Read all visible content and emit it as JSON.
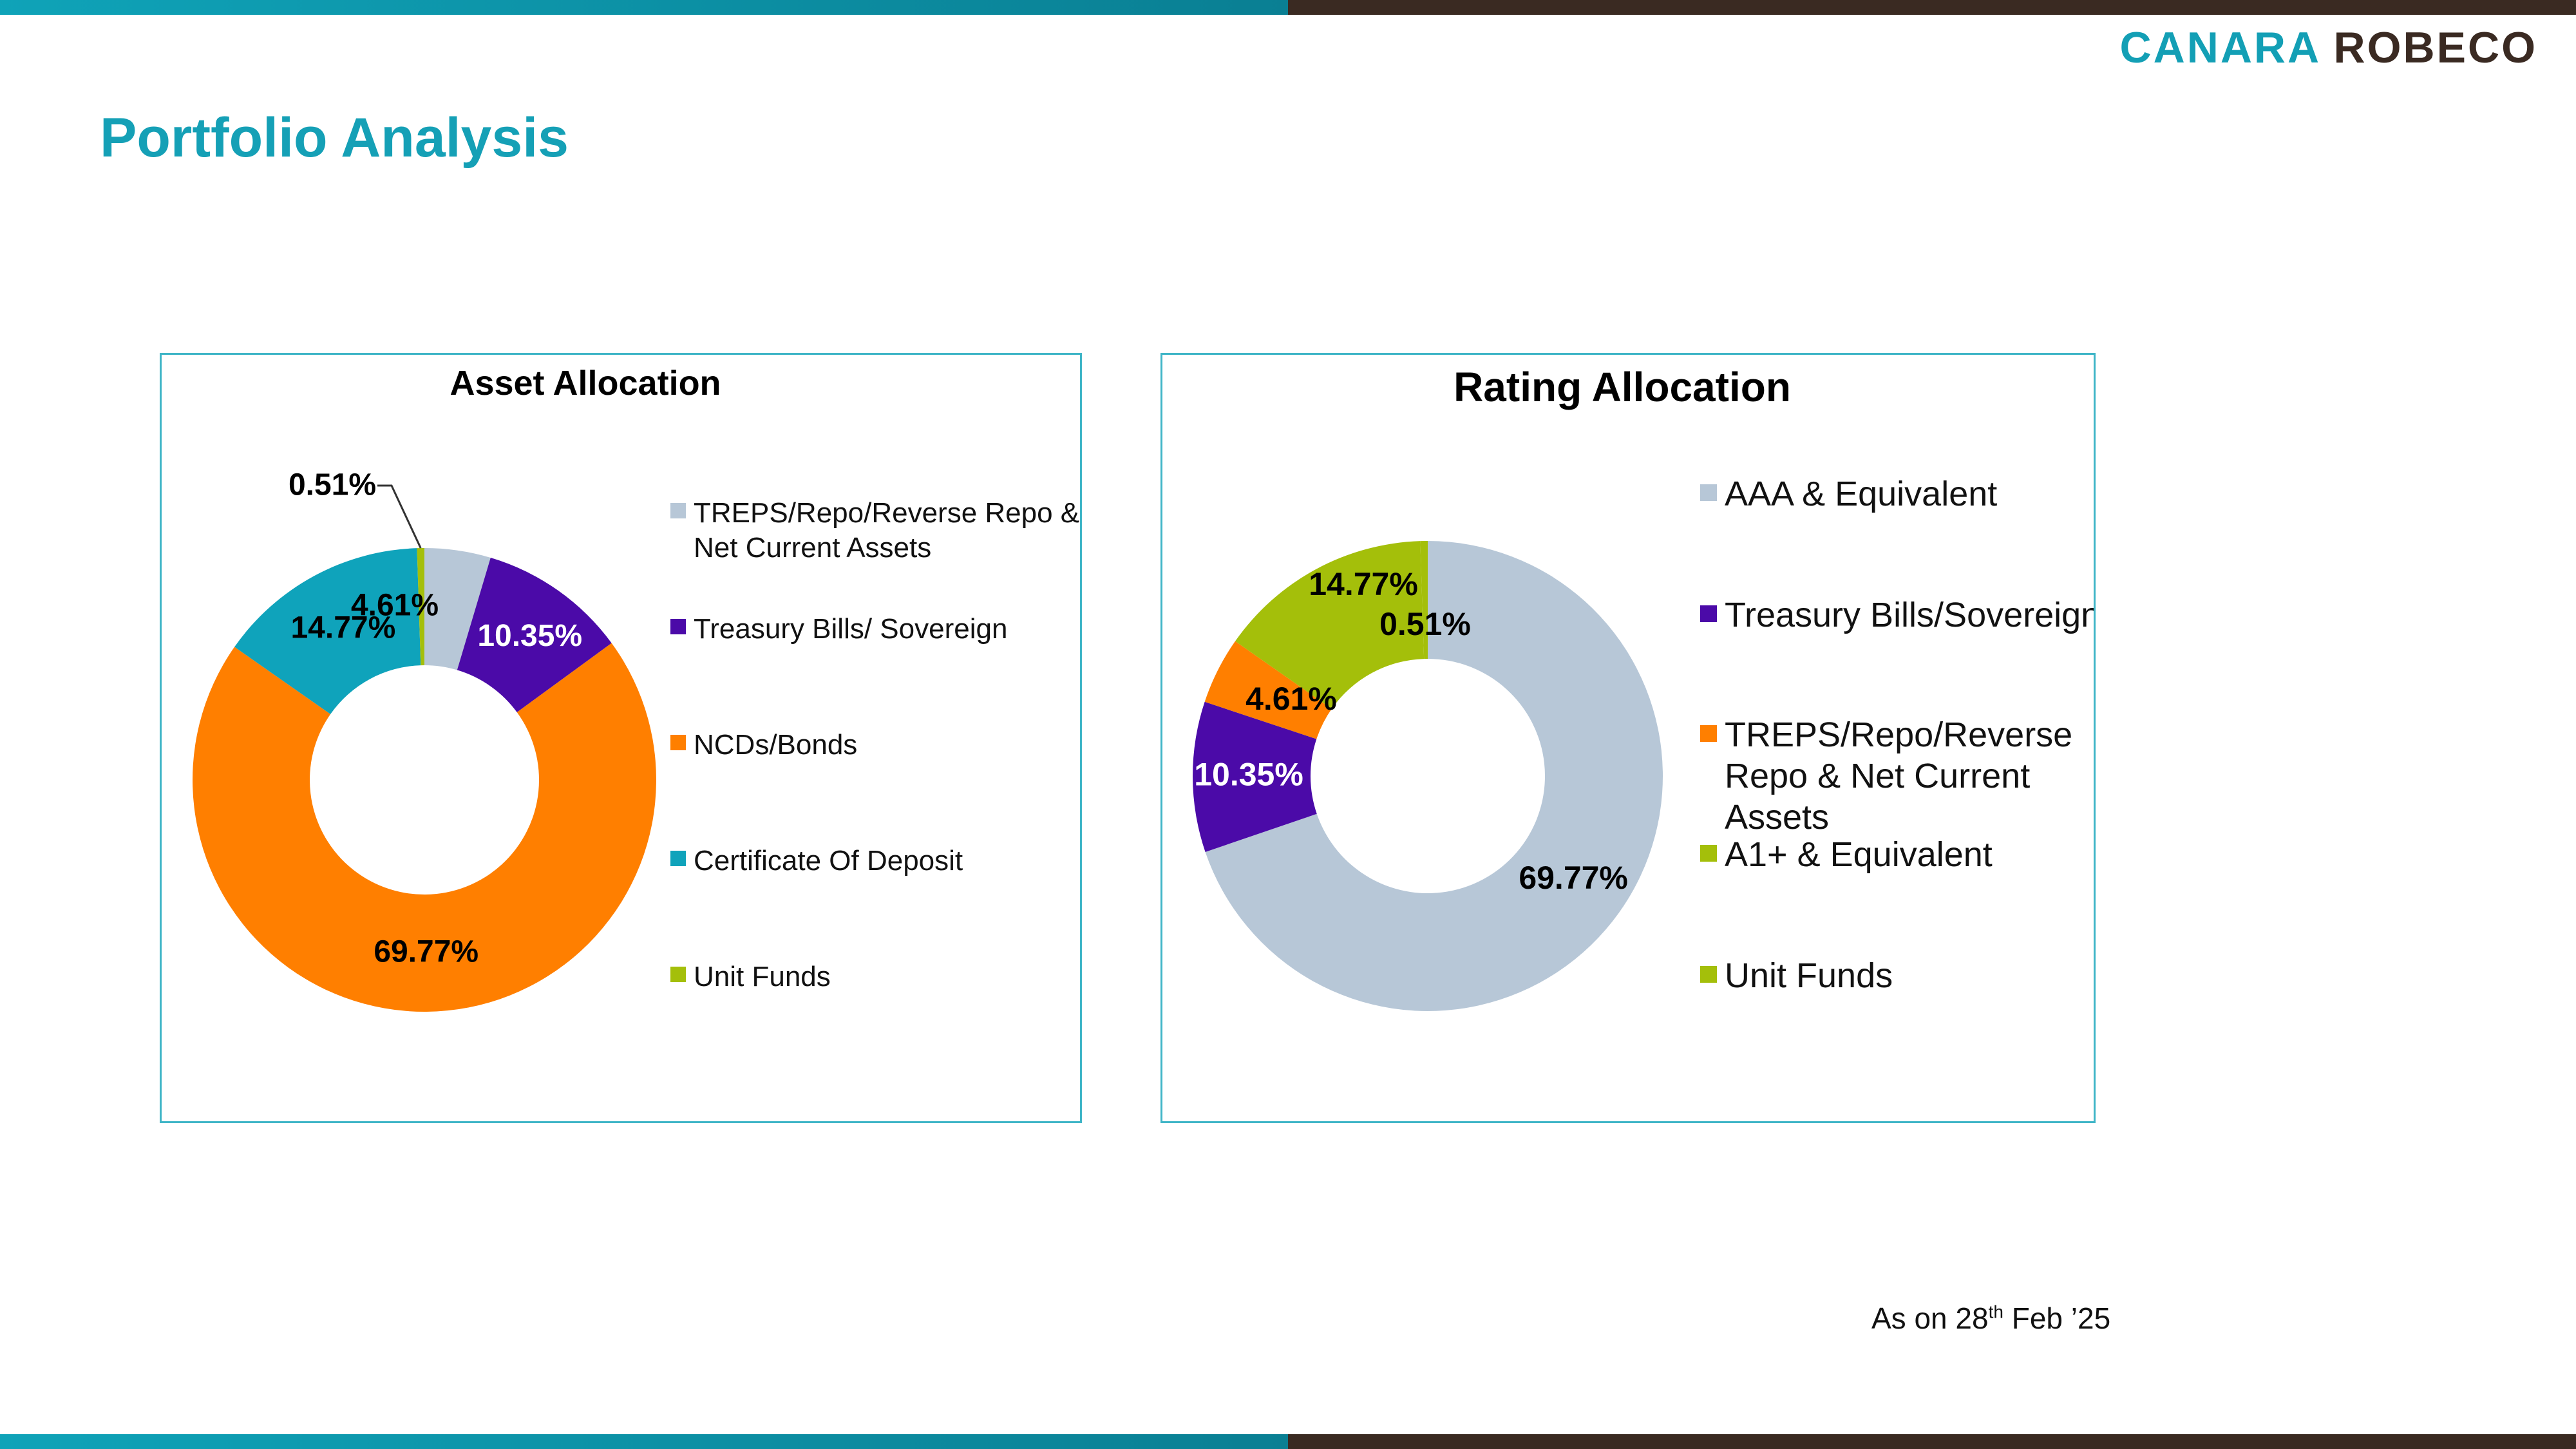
{
  "brand": {
    "part1": "CANARA",
    "part2": "ROBECO",
    "color_teal": "#139fb5",
    "color_brown": "#3a2a22"
  },
  "page_title": "Portfolio Analysis",
  "footnote": {
    "prefix": "As on 28",
    "sup": "th",
    "suffix": " Feb  ’25"
  },
  "chart_data": [
    {
      "type": "pie",
      "donut": true,
      "title": "Asset Allocation",
      "legend_position": "right",
      "slices": [
        {
          "label": "TREPS/Repo/Reverse Repo & Net Current Assets",
          "legend_lines": [
            "TREPS/Repo/Reverse Repo &",
            "Net Current Assets"
          ],
          "value": 4.61,
          "display": "4.61%",
          "color": "#b7c7d7",
          "label_color": "#000000"
        },
        {
          "label": "Treasury Bills/ Sovereign",
          "legend_lines": [
            "Treasury Bills/ Sovereign"
          ],
          "value": 10.35,
          "display": "10.35%",
          "color": "#4b0aa8",
          "label_color": "#ffffff"
        },
        {
          "label": "NCDs/Bonds",
          "legend_lines": [
            "NCDs/Bonds"
          ],
          "value": 69.77,
          "display": "69.77%",
          "color": "#ff7f00",
          "label_color": "#000000"
        },
        {
          "label": "Certificate Of Deposit",
          "legend_lines": [
            "Certificate Of Deposit"
          ],
          "value": 14.77,
          "display": "14.77%",
          "color": "#0fa3bb",
          "label_color": "#000000"
        },
        {
          "label": "Unit Funds",
          "legend_lines": [
            "Unit Funds"
          ],
          "value": 0.51,
          "display": "0.51%",
          "color": "#a4bf0a",
          "label_color": "#000000"
        }
      ]
    },
    {
      "type": "pie",
      "donut": true,
      "title": "Rating Allocation",
      "legend_position": "right",
      "slices": [
        {
          "label": "AAA & Equivalent",
          "legend_lines": [
            "AAA & Equivalent"
          ],
          "value": 69.77,
          "display": "69.77%",
          "color": "#b7c7d7",
          "label_color": "#000000"
        },
        {
          "label": "Treasury Bills/Sovereign",
          "legend_lines": [
            "Treasury Bills/Sovereign"
          ],
          "value": 10.35,
          "display": "10.35%",
          "color": "#4b0aa8",
          "label_color": "#ffffff"
        },
        {
          "label": "TREPS/Repo/Reverse Repo & Net Current Assets",
          "legend_lines": [
            "TREPS/Repo/Reverse",
            "Repo & Net Current",
            "Assets"
          ],
          "value": 4.61,
          "display": "4.61%",
          "color": "#ff7f00",
          "label_color": "#000000"
        },
        {
          "label": "A1+ & Equivalent",
          "legend_lines": [
            "A1+ & Equivalent"
          ],
          "value": 14.77,
          "display": "14.77%",
          "color": "#a4bf0a",
          "label_color": "#000000"
        },
        {
          "label": "Unit Funds",
          "legend_lines": [
            "Unit Funds"
          ],
          "value": 0.51,
          "display": "0.51%",
          "color": "#a4bf0a",
          "label_color": "#000000"
        }
      ]
    }
  ]
}
